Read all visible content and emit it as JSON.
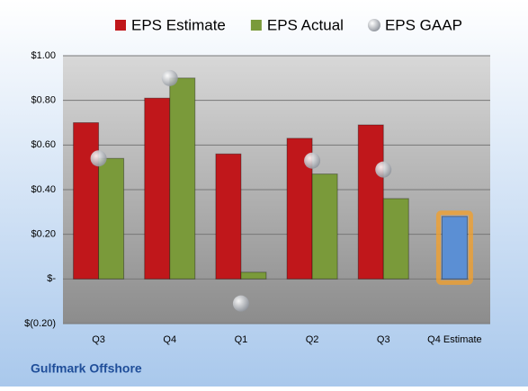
{
  "chart_data": {
    "type": "bar",
    "categories": [
      "Q3",
      "Q4",
      "Q1",
      "Q2",
      "Q3",
      "Q4 Estimate"
    ],
    "series": [
      {
        "name": "EPS Estimate",
        "color": "#c0171b",
        "values": [
          0.7,
          0.81,
          0.56,
          0.63,
          0.69,
          0.28
        ],
        "point_colors": [
          "#c0171b",
          "#c0171b",
          "#c0171b",
          "#c0171b",
          "#c0171b",
          "#5b8fd4"
        ]
      },
      {
        "name": "EPS Actual",
        "color": "#7a9a3a",
        "values": [
          0.54,
          0.9,
          0.03,
          0.47,
          0.36,
          null
        ]
      },
      {
        "name": "EPS GAAP",
        "color": "#b8bcc4",
        "marker": "circle",
        "values": [
          0.54,
          0.9,
          -0.11,
          0.53,
          0.49,
          null
        ]
      }
    ],
    "ylim": [
      -0.2,
      1.0
    ],
    "yticks": [
      {
        "value": -0.2,
        "label": "$(0.20)"
      },
      {
        "value": 0,
        "label": "$-"
      },
      {
        "value": 0.2,
        "label": "$0.20"
      },
      {
        "value": 0.4,
        "label": "$0.40"
      },
      {
        "value": 0.6,
        "label": "$0.60"
      },
      {
        "value": 0.8,
        "label": "$0.80"
      },
      {
        "value": 1.0,
        "label": "$1.00"
      }
    ],
    "grid": true,
    "footer": "Gulfmark Offshore"
  }
}
